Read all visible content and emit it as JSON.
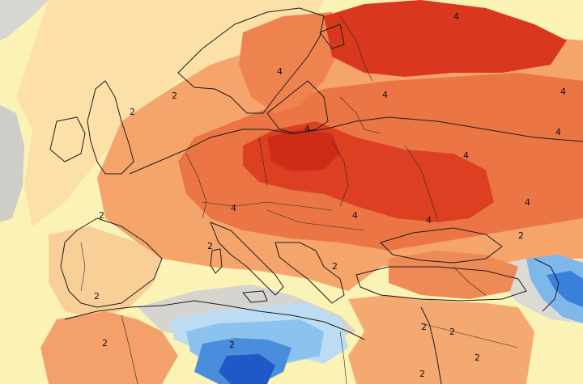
{
  "map": {
    "contour_labels": [
      "2",
      "2",
      "2",
      "2",
      "2",
      "2",
      "2",
      "2",
      "2",
      "2",
      "2",
      "2",
      "2",
      "4",
      "4",
      "4",
      "4",
      "4",
      "4",
      "4",
      "4",
      "4",
      "4",
      "4"
    ],
    "palette": {
      "ocean_gray": "#d4d2cc",
      "pale_yellow": "#fbf2b6",
      "light_orange": "#f9c78c",
      "orange": "#f39a63",
      "deep_orange": "#ea6a3e",
      "red": "#dd3b21",
      "light_blue": "#bfe0f6",
      "sky_blue": "#84c0ef",
      "blue": "#3f86dc",
      "dark_blue": "#1c56c6"
    }
  }
}
